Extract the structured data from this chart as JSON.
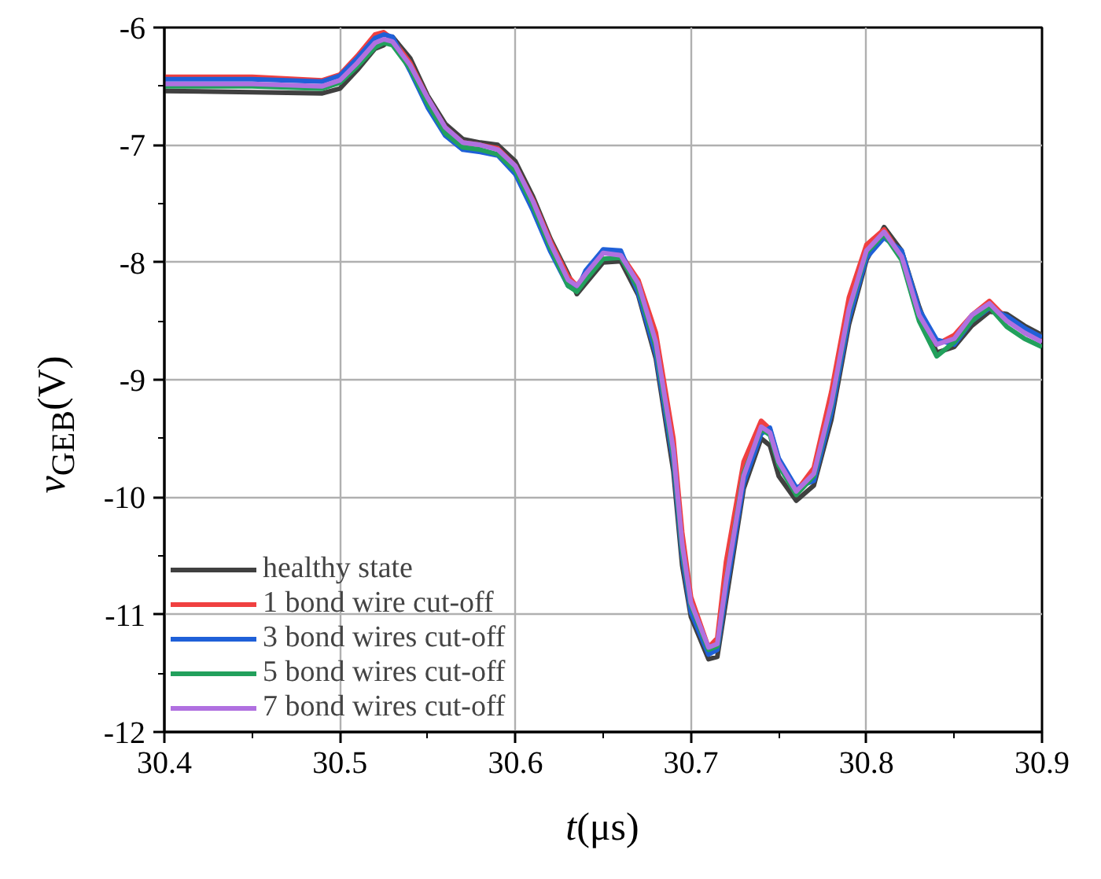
{
  "chart_data": {
    "type": "line",
    "xlabel": "t(μs)",
    "ylabel": "v$_{GEB}$(V)",
    "x": [
      30.4,
      30.45,
      30.49,
      30.5,
      30.51,
      30.52,
      30.525,
      30.53,
      30.54,
      30.55,
      30.56,
      30.57,
      30.58,
      30.59,
      30.6,
      30.61,
      30.62,
      30.63,
      30.635,
      30.64,
      30.65,
      30.66,
      30.67,
      30.68,
      30.69,
      30.695,
      30.7,
      30.71,
      30.715,
      30.72,
      30.73,
      30.74,
      30.745,
      30.75,
      30.76,
      30.77,
      30.78,
      30.79,
      30.8,
      30.81,
      30.82,
      30.83,
      30.84,
      30.85,
      30.86,
      30.87,
      30.88,
      30.89,
      30.9
    ],
    "series": [
      {
        "name": "healthy state",
        "color": "#404040",
        "values": [
          -6.54,
          -6.55,
          -6.56,
          -6.52,
          -6.36,
          -6.18,
          -6.15,
          -6.08,
          -6.26,
          -6.58,
          -6.82,
          -6.95,
          -6.98,
          -7.0,
          -7.14,
          -7.44,
          -7.8,
          -8.1,
          -8.27,
          -8.18,
          -8.0,
          -7.99,
          -8.28,
          -8.82,
          -9.78,
          -10.58,
          -11.02,
          -11.38,
          -11.36,
          -10.88,
          -9.93,
          -9.5,
          -9.56,
          -9.82,
          -10.03,
          -9.9,
          -9.34,
          -8.53,
          -7.98,
          -7.7,
          -7.9,
          -8.38,
          -8.77,
          -8.72,
          -8.54,
          -8.42,
          -8.44,
          -8.54,
          -8.62
        ]
      },
      {
        "name": "1 bond wire cut-off",
        "color": "#f04040",
        "values": [
          -6.42,
          -6.42,
          -6.45,
          -6.4,
          -6.24,
          -6.06,
          -6.04,
          -6.1,
          -6.3,
          -6.6,
          -6.85,
          -6.98,
          -7.0,
          -7.03,
          -7.18,
          -7.47,
          -7.82,
          -8.12,
          -8.2,
          -8.1,
          -7.92,
          -7.93,
          -8.15,
          -8.6,
          -9.5,
          -10.3,
          -10.85,
          -11.28,
          -11.2,
          -10.55,
          -9.7,
          -9.35,
          -9.42,
          -9.68,
          -9.95,
          -9.75,
          -9.1,
          -8.3,
          -7.85,
          -7.72,
          -7.95,
          -8.45,
          -8.7,
          -8.62,
          -8.45,
          -8.33,
          -8.48,
          -8.6,
          -8.67
        ]
      },
      {
        "name": "3 bond wires cut-off",
        "color": "#1f60d8",
        "values": [
          -6.44,
          -6.44,
          -6.46,
          -6.41,
          -6.26,
          -6.09,
          -6.06,
          -6.08,
          -6.37,
          -6.68,
          -6.92,
          -7.04,
          -7.06,
          -7.09,
          -7.25,
          -7.56,
          -7.91,
          -8.2,
          -8.24,
          -8.07,
          -7.89,
          -7.9,
          -8.26,
          -8.78,
          -9.7,
          -10.5,
          -10.98,
          -11.34,
          -11.3,
          -10.8,
          -9.88,
          -9.46,
          -9.41,
          -9.67,
          -9.92,
          -9.86,
          -9.28,
          -8.48,
          -7.96,
          -7.79,
          -7.9,
          -8.4,
          -8.66,
          -8.7,
          -8.5,
          -8.39,
          -8.46,
          -8.56,
          -8.64
        ]
      },
      {
        "name": "5 bond wires cut-off",
        "color": "#22a05c",
        "values": [
          -6.5,
          -6.5,
          -6.52,
          -6.47,
          -6.33,
          -6.17,
          -6.13,
          -6.15,
          -6.35,
          -6.65,
          -6.9,
          -7.02,
          -7.04,
          -7.08,
          -7.22,
          -7.52,
          -7.88,
          -8.2,
          -8.25,
          -8.15,
          -7.97,
          -7.96,
          -8.22,
          -8.72,
          -9.65,
          -10.45,
          -10.92,
          -11.3,
          -11.27,
          -10.72,
          -9.8,
          -9.42,
          -9.47,
          -9.73,
          -9.98,
          -9.82,
          -9.22,
          -8.42,
          -7.92,
          -7.76,
          -7.98,
          -8.5,
          -8.8,
          -8.68,
          -8.5,
          -8.38,
          -8.55,
          -8.65,
          -8.72
        ]
      },
      {
        "name": "7 bond wires cut-off",
        "color": "#b070e0",
        "values": [
          -6.48,
          -6.48,
          -6.5,
          -6.45,
          -6.3,
          -6.13,
          -6.1,
          -6.12,
          -6.32,
          -6.6,
          -6.85,
          -6.98,
          -7.0,
          -7.04,
          -7.18,
          -7.48,
          -7.84,
          -8.15,
          -8.2,
          -8.1,
          -7.92,
          -7.94,
          -8.18,
          -8.68,
          -9.6,
          -10.4,
          -10.9,
          -11.28,
          -11.25,
          -10.72,
          -9.82,
          -9.4,
          -9.45,
          -9.7,
          -9.95,
          -9.8,
          -9.2,
          -8.4,
          -7.9,
          -7.74,
          -7.95,
          -8.45,
          -8.7,
          -8.65,
          -8.45,
          -8.35,
          -8.5,
          -8.6,
          -8.68
        ]
      }
    ],
    "xlim": [
      30.4,
      30.9
    ],
    "xticks": [
      30.4,
      30.5,
      30.6,
      30.7,
      30.8,
      30.9
    ],
    "ylim": [
      -12,
      -6
    ],
    "yticks": [
      -12,
      -11,
      -10,
      -9,
      -8,
      -7,
      -6
    ],
    "grid": true,
    "legend": "bottom left",
    "line_style": "solid"
  }
}
